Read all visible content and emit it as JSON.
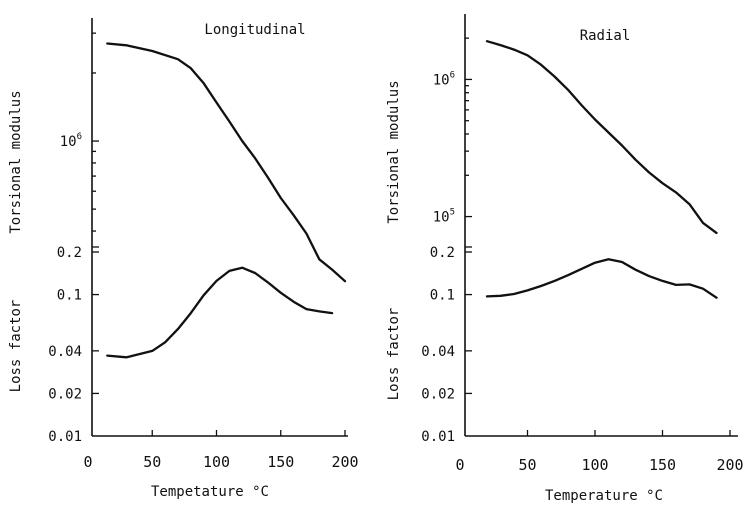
{
  "chart_data": [
    {
      "panel": "left",
      "type": "line",
      "title": "Longitudinal",
      "xlabel": "Tempetature °C",
      "xlim": [
        0,
        200
      ],
      "xticks": [
        "0",
        "50",
        "100",
        "150",
        "200"
      ],
      "top": {
        "ylabel": "Torsional modulus",
        "yscale": "log",
        "ylim": [
          340000,
          3500000
        ],
        "yticks": [
          {
            "value": 1000000,
            "base": "10",
            "exp": "6"
          }
        ],
        "minor_ticks": [
          400000,
          500000,
          600000,
          700000,
          800000,
          900000,
          2000000,
          3000000
        ],
        "x": [
          15,
          30,
          50,
          70,
          80,
          90,
          100,
          110,
          120,
          130,
          140,
          150,
          160,
          170,
          180,
          190,
          200
        ],
        "values": [
          2700000,
          2650000,
          2500000,
          2300000,
          2100000,
          1800000,
          1480000,
          1220000,
          1000000,
          840000,
          690000,
          560000,
          470000,
          390000,
          300000,
          270000,
          240000
        ]
      },
      "bottom": {
        "ylabel": "Loss factor",
        "yscale": "log",
        "ylim": [
          0.01,
          0.2
        ],
        "yticks": [
          "0.2",
          "0.1",
          "0.04",
          "0.02",
          "0.01"
        ],
        "tick_values": [
          0.2,
          0.1,
          0.04,
          0.02,
          0.01
        ],
        "x": [
          15,
          30,
          50,
          60,
          70,
          80,
          90,
          100,
          110,
          120,
          130,
          140,
          150,
          160,
          170,
          180,
          190
        ],
        "values": [
          0.037,
          0.036,
          0.04,
          0.046,
          0.057,
          0.074,
          0.099,
          0.125,
          0.147,
          0.155,
          0.142,
          0.122,
          0.103,
          0.089,
          0.079,
          0.076,
          0.074
        ]
      }
    },
    {
      "panel": "right",
      "type": "line",
      "title": "Radial",
      "xlabel": "Temperature °C",
      "xlim": [
        0,
        200
      ],
      "xticks": [
        "0",
        "50",
        "100",
        "150",
        "200"
      ],
      "top": {
        "ylabel": "Torsional modulus",
        "yscale": "log",
        "ylim": [
          60000,
          3000000
        ],
        "yticks": [
          {
            "value": 1000000,
            "base": "10",
            "exp": "6"
          },
          {
            "value": 100000,
            "base": "10",
            "exp": "5"
          }
        ],
        "minor_ticks": [
          200000,
          300000,
          400000,
          500000,
          600000,
          700000,
          800000,
          900000,
          2000000
        ],
        "x": [
          20,
          30,
          40,
          50,
          60,
          70,
          80,
          90,
          100,
          110,
          120,
          130,
          140,
          150,
          160,
          170,
          180,
          190
        ],
        "values": [
          1900000,
          1780000,
          1650000,
          1500000,
          1280000,
          1050000,
          840000,
          650000,
          510000,
          410000,
          330000,
          260000,
          210000,
          175000,
          150000,
          123000,
          90000,
          76000
        ]
      },
      "bottom": {
        "ylabel": "Loss factor",
        "yscale": "log",
        "ylim": [
          0.01,
          0.2
        ],
        "yticks": [
          "0.2",
          "0.1",
          "0.04",
          "0.02",
          "0.01"
        ],
        "tick_values": [
          0.2,
          0.1,
          0.04,
          0.02,
          0.01
        ],
        "x": [
          20,
          30,
          40,
          50,
          60,
          70,
          80,
          90,
          100,
          110,
          120,
          130,
          140,
          150,
          160,
          170,
          180,
          190
        ],
        "values": [
          0.097,
          0.098,
          0.101,
          0.107,
          0.115,
          0.125,
          0.137,
          0.152,
          0.168,
          0.178,
          0.17,
          0.15,
          0.135,
          0.125,
          0.117,
          0.118,
          0.11,
          0.095
        ]
      }
    }
  ]
}
